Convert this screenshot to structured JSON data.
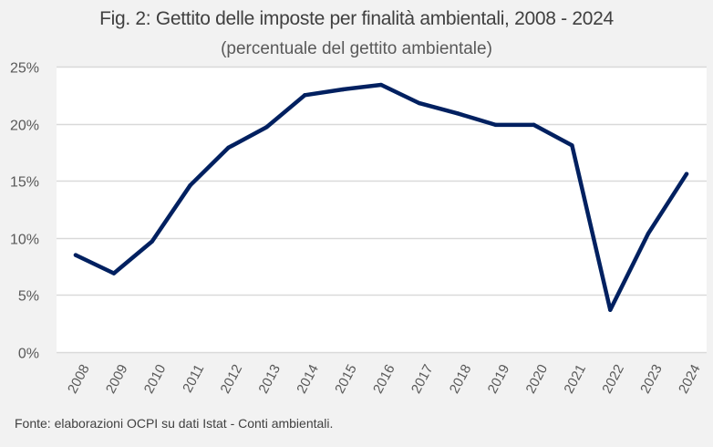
{
  "chart_data": {
    "type": "line",
    "title": "Fig. 2: Gettito delle imposte per finalità ambientali, 2008 - 2024",
    "subtitle": "(percentuale del gettito ambientale)",
    "xlabel": "",
    "ylabel": "",
    "categories": [
      "2008",
      "2009",
      "2010",
      "2011",
      "2012",
      "2013",
      "2014",
      "2015",
      "2016",
      "2017",
      "2018",
      "2019",
      "2020",
      "2021",
      "2022",
      "2023",
      "2024"
    ],
    "series": [
      {
        "name": "Gettito imposte per finalità ambientali",
        "color": "#002060",
        "values": [
          8.5,
          6.9,
          9.7,
          14.6,
          17.9,
          19.7,
          22.5,
          23.0,
          23.4,
          21.8,
          20.9,
          19.9,
          19.9,
          18.1,
          3.7,
          10.4,
          15.6
        ]
      }
    ],
    "ylim": [
      0,
      25
    ],
    "yticks": [
      0,
      5,
      10,
      15,
      20,
      25
    ],
    "ytick_labels": [
      "0%",
      "5%",
      "10%",
      "15%",
      "20%",
      "25%"
    ],
    "grid": true,
    "legend": "none"
  },
  "footer": {
    "source": "Fonte: elaborazioni OCPI su dati Istat - Conti ambientali."
  },
  "colors": {
    "background": "#f2f2f2",
    "plot_background": "#ffffff",
    "gridline": "#d9d9d9",
    "line": "#002060"
  }
}
